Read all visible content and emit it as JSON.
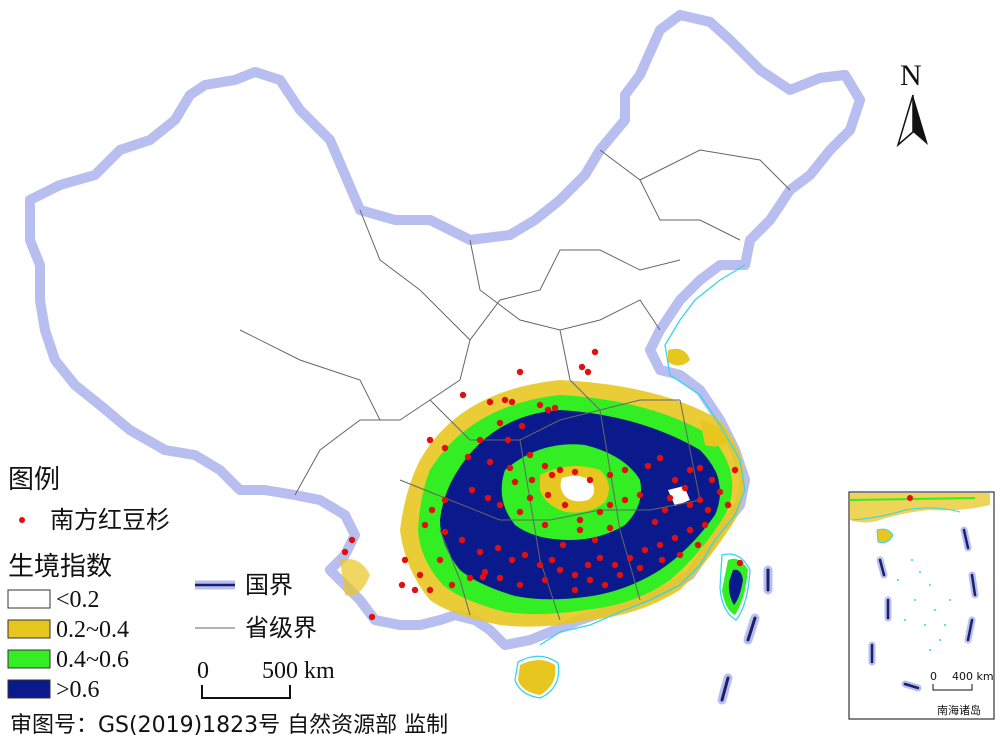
{
  "north_label": "N",
  "legend": {
    "title": "图例",
    "species_label": "南方红豆杉",
    "index_title": "生境指数",
    "classes": [
      {
        "label": "<0.2",
        "color": "#ffffff"
      },
      {
        "label": "0.2~0.4",
        "color": "#e8c620"
      },
      {
        "label": "0.4~0.6",
        "color": "#33ee22"
      },
      {
        "label": ">0.6",
        "color": "#0a1a8c"
      }
    ],
    "national_border": "国界",
    "provincial_border": "省级界"
  },
  "scale": {
    "zero": "0",
    "value": "500 km"
  },
  "inset": {
    "zero": "0",
    "value": "400 km",
    "caption": "南海诸岛"
  },
  "footer": "审图号：GS(2019)1823号 自然资源部 监制",
  "colors": {
    "border_halo": "#b8bff0",
    "border_line": "#1a1f6b",
    "province_line": "#666666",
    "coast": "#33d6ee",
    "point": "#e01010"
  },
  "occurrence_points": [
    [
      595,
      352
    ],
    [
      582,
      367
    ],
    [
      588,
      372
    ],
    [
      520,
      372
    ],
    [
      463,
      395
    ],
    [
      490,
      402
    ],
    [
      505,
      400
    ],
    [
      512,
      402
    ],
    [
      540,
      405
    ],
    [
      548,
      410
    ],
    [
      555,
      408
    ],
    [
      500,
      423
    ],
    [
      522,
      426
    ],
    [
      430,
      440
    ],
    [
      445,
      448
    ],
    [
      468,
      457
    ],
    [
      490,
      462
    ],
    [
      510,
      468
    ],
    [
      530,
      455
    ],
    [
      545,
      466
    ],
    [
      560,
      470
    ],
    [
      575,
      472
    ],
    [
      590,
      480
    ],
    [
      610,
      475
    ],
    [
      625,
      470
    ],
    [
      648,
      466
    ],
    [
      660,
      458
    ],
    [
      690,
      470
    ],
    [
      700,
      468
    ],
    [
      712,
      480
    ],
    [
      720,
      492
    ],
    [
      735,
      470
    ],
    [
      728,
      505
    ],
    [
      708,
      510
    ],
    [
      690,
      505
    ],
    [
      670,
      498
    ],
    [
      640,
      495
    ],
    [
      625,
      500
    ],
    [
      610,
      505
    ],
    [
      600,
      512
    ],
    [
      580,
      520
    ],
    [
      565,
      505
    ],
    [
      548,
      495
    ],
    [
      530,
      498
    ],
    [
      520,
      512
    ],
    [
      500,
      505
    ],
    [
      488,
      498
    ],
    [
      472,
      490
    ],
    [
      445,
      500
    ],
    [
      432,
      510
    ],
    [
      425,
      525
    ],
    [
      445,
      532
    ],
    [
      462,
      540
    ],
    [
      480,
      552
    ],
    [
      498,
      548
    ],
    [
      512,
      560
    ],
    [
      525,
      555
    ],
    [
      540,
      565
    ],
    [
      552,
      560
    ],
    [
      560,
      570
    ],
    [
      575,
      575
    ],
    [
      588,
      565
    ],
    [
      600,
      558
    ],
    [
      615,
      565
    ],
    [
      630,
      558
    ],
    [
      645,
      550
    ],
    [
      660,
      545
    ],
    [
      675,
      538
    ],
    [
      690,
      530
    ],
    [
      705,
      525
    ],
    [
      698,
      545
    ],
    [
      680,
      555
    ],
    [
      662,
      560
    ],
    [
      640,
      568
    ],
    [
      620,
      575
    ],
    [
      605,
      585
    ],
    [
      590,
      580
    ],
    [
      575,
      590
    ],
    [
      545,
      580
    ],
    [
      520,
      585
    ],
    [
      500,
      578
    ],
    [
      485,
      572
    ],
    [
      470,
      578
    ],
    [
      452,
      585
    ],
    [
      430,
      590
    ],
    [
      420,
      575
    ],
    [
      405,
      560
    ],
    [
      440,
      560
    ],
    [
      345,
      552
    ],
    [
      352,
      540
    ],
    [
      402,
      585
    ],
    [
      372,
      617
    ],
    [
      415,
      590
    ],
    [
      483,
      577
    ],
    [
      740,
      563
    ],
    [
      552,
      475
    ],
    [
      532,
      480
    ],
    [
      508,
      440
    ],
    [
      480,
      440
    ],
    [
      515,
      482
    ],
    [
      545,
      525
    ],
    [
      563,
      545
    ],
    [
      580,
      530
    ],
    [
      595,
      540
    ],
    [
      610,
      528
    ],
    [
      655,
      522
    ],
    [
      665,
      510
    ],
    [
      685,
      488
    ],
    [
      700,
      500
    ],
    [
      675,
      480
    ]
  ]
}
